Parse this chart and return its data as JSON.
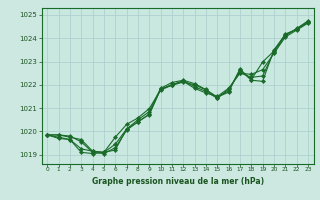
{
  "background_color": "#cce8e0",
  "plot_bg_color": "#c8e8e0",
  "grid_color": "#aacccc",
  "line_color": "#1a6b2a",
  "title": "Graphe pression niveau de la mer (hPa)",
  "xlim": [
    -0.5,
    23.5
  ],
  "ylim": [
    1018.6,
    1025.3
  ],
  "yticks": [
    1019,
    1020,
    1021,
    1022,
    1023,
    1024,
    1025
  ],
  "xticks": [
    0,
    1,
    2,
    3,
    4,
    5,
    6,
    7,
    8,
    9,
    10,
    11,
    12,
    13,
    14,
    15,
    16,
    17,
    18,
    19,
    20,
    21,
    22,
    23
  ],
  "series": [
    [
      1019.85,
      1019.85,
      1019.75,
      1019.65,
      1019.15,
      1019.1,
      1019.2,
      1020.1,
      1020.5,
      1020.85,
      1021.85,
      1022.1,
      1022.2,
      1022.05,
      1021.8,
      1021.45,
      1021.75,
      1022.65,
      1022.2,
      1022.15,
      1023.5,
      1024.15,
      1024.4,
      1024.75
    ],
    [
      1019.85,
      1019.75,
      1019.65,
      1019.25,
      1019.15,
      1019.1,
      1019.45,
      1020.1,
      1020.4,
      1020.75,
      1021.8,
      1022.0,
      1022.15,
      1021.85,
      1021.65,
      1021.5,
      1021.85,
      1022.5,
      1022.45,
      1022.65,
      1023.35,
      1024.05,
      1024.35,
      1024.65
    ],
    [
      1019.85,
      1019.85,
      1019.8,
      1019.55,
      1019.1,
      1019.05,
      1019.3,
      1020.05,
      1020.42,
      1020.72,
      1021.82,
      1022.0,
      1022.18,
      1021.92,
      1021.72,
      1021.42,
      1021.82,
      1022.52,
      1022.32,
      1022.38,
      1023.42,
      1024.1,
      1024.42,
      1024.72
    ],
    [
      1019.85,
      1019.7,
      1019.65,
      1019.1,
      1019.05,
      1019.1,
      1019.75,
      1020.3,
      1020.58,
      1020.98,
      1021.78,
      1021.98,
      1022.12,
      1022.0,
      1021.78,
      1021.48,
      1021.68,
      1022.68,
      1022.22,
      1022.98,
      1023.45,
      1024.18,
      1024.38,
      1024.68
    ]
  ]
}
